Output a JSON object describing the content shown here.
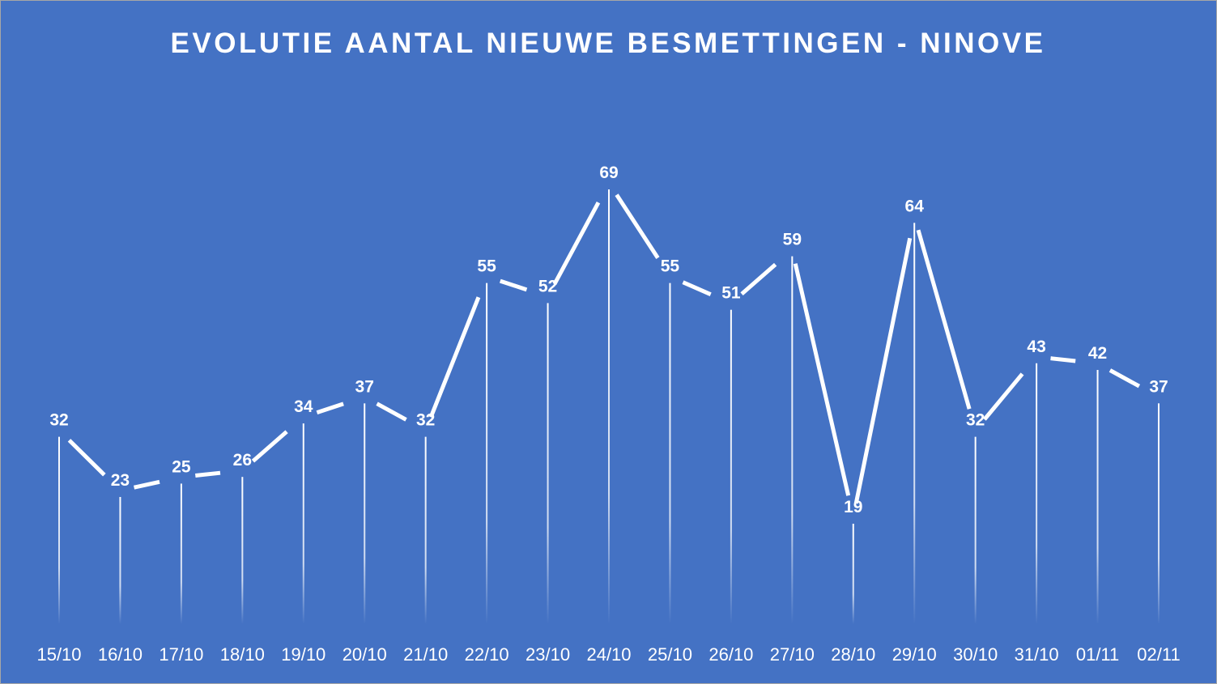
{
  "chart_data": {
    "type": "line",
    "title": "EVOLUTIE  AANTAL NIEUWE BESMETTINGEN  - NINOVE",
    "categories": [
      "15/10",
      "16/10",
      "17/10",
      "18/10",
      "19/10",
      "20/10",
      "21/10",
      "22/10",
      "23/10",
      "24/10",
      "25/10",
      "26/10",
      "27/10",
      "28/10",
      "29/10",
      "30/10",
      "31/10",
      "01/11",
      "02/11"
    ],
    "series": [
      {
        "values": [
          32,
          23,
          25,
          26,
          34,
          37,
          32,
          55,
          52,
          69,
          55,
          51,
          59,
          19,
          64,
          32,
          43,
          42,
          37
        ]
      }
    ],
    "data_labels": true,
    "drop_lines": true,
    "legend": "none",
    "grid": false,
    "colors": {
      "background": "#4472c4",
      "line": "#ffffff",
      "text": "#ffffff"
    }
  }
}
